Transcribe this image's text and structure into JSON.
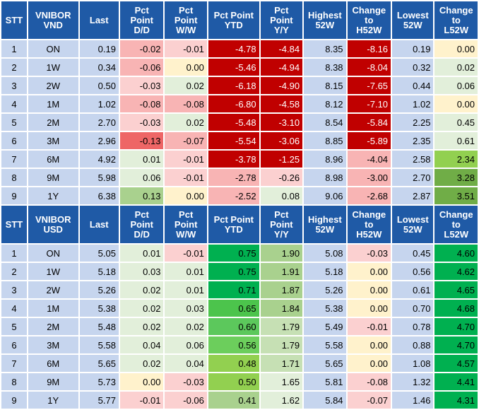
{
  "tables": [
    {
      "headers": [
        "STT",
        "VNIBOR\nVND",
        "Last",
        "Pct\nPoint\nD/D",
        "Pct\nPoint\nW/W",
        "Pct Point\nYTD",
        "Pct\nPoint\nY/Y",
        "Highest\n52W",
        "Change\nto\nH52W",
        "Lowest\n52W",
        "Change\nto\nL52W"
      ],
      "rows": [
        {
          "stt": "1",
          "term": "ON",
          "last": "0.19",
          "dd": "-0.02",
          "ww": "-0.01",
          "ytd": "-4.78",
          "yy": "-4.84",
          "h52": "8.35",
          "ch": "-8.16",
          "l52": "0.19",
          "cl": "0.00"
        },
        {
          "stt": "2",
          "term": "1W",
          "last": "0.34",
          "dd": "-0.06",
          "ww": "0.00",
          "ytd": "-5.46",
          "yy": "-4.94",
          "h52": "8.38",
          "ch": "-8.04",
          "l52": "0.32",
          "cl": "0.02"
        },
        {
          "stt": "3",
          "term": "2W",
          "last": "0.50",
          "dd": "-0.03",
          "ww": "0.02",
          "ytd": "-6.18",
          "yy": "-4.90",
          "h52": "8.15",
          "ch": "-7.65",
          "l52": "0.44",
          "cl": "0.06"
        },
        {
          "stt": "4",
          "term": "1M",
          "last": "1.02",
          "dd": "-0.08",
          "ww": "-0.08",
          "ytd": "-6.80",
          "yy": "-4.58",
          "h52": "8.12",
          "ch": "-7.10",
          "l52": "1.02",
          "cl": "0.00"
        },
        {
          "stt": "5",
          "term": "2M",
          "last": "2.70",
          "dd": "-0.03",
          "ww": "0.02",
          "ytd": "-5.48",
          "yy": "-3.10",
          "h52": "8.54",
          "ch": "-5.84",
          "l52": "2.25",
          "cl": "0.45"
        },
        {
          "stt": "6",
          "term": "3M",
          "last": "2.96",
          "dd": "-0.13",
          "ww": "-0.07",
          "ytd": "-5.54",
          "yy": "-3.06",
          "h52": "8.85",
          "ch": "-5.89",
          "l52": "2.35",
          "cl": "0.61"
        },
        {
          "stt": "7",
          "term": "6M",
          "last": "4.92",
          "dd": "0.01",
          "ww": "-0.01",
          "ytd": "-3.78",
          "yy": "-1.25",
          "h52": "8.96",
          "ch": "-4.04",
          "l52": "2.58",
          "cl": "2.34"
        },
        {
          "stt": "8",
          "term": "9M",
          "last": "5.98",
          "dd": "0.06",
          "ww": "-0.01",
          "ytd": "-2.78",
          "yy": "-0.26",
          "h52": "8.98",
          "ch": "-3.00",
          "l52": "2.70",
          "cl": "3.28"
        },
        {
          "stt": "9",
          "term": "1Y",
          "last": "6.38",
          "dd": "0.13",
          "ww": "0.00",
          "ytd": "-2.52",
          "yy": "0.08",
          "h52": "9.06",
          "ch": "-2.68",
          "l52": "2.87",
          "cl": "3.51"
        }
      ],
      "colors": [
        {
          "dd": "#f8b4b4",
          "ww": "#fbd0d0",
          "ytd": "#c00000",
          "yy": "#c00000",
          "ch": "#c00000",
          "cl": "#fff2cc"
        },
        {
          "dd": "#f8b4b4",
          "ww": "#fff2cc",
          "ytd": "#c00000",
          "yy": "#c00000",
          "ch": "#c00000",
          "cl": "#e2efda"
        },
        {
          "dd": "#fbd0d0",
          "ww": "#e2efda",
          "ytd": "#c00000",
          "yy": "#c00000",
          "ch": "#c00000",
          "cl": "#e2efda"
        },
        {
          "dd": "#f8b4b4",
          "ww": "#f8b4b4",
          "ytd": "#c00000",
          "yy": "#c00000",
          "ch": "#c00000",
          "cl": "#fff2cc"
        },
        {
          "dd": "#fbd0d0",
          "ww": "#e2efda",
          "ytd": "#c00000",
          "yy": "#c00000",
          "ch": "#c00000",
          "cl": "#e2efda"
        },
        {
          "dd": "#ee6666",
          "ww": "#f8b4b4",
          "ytd": "#c00000",
          "yy": "#c00000",
          "ch": "#c00000",
          "cl": "#e2efda"
        },
        {
          "dd": "#e2efda",
          "ww": "#fbd0d0",
          "ytd": "#c00000",
          "yy": "#c00000",
          "ch": "#f8b4b4",
          "cl": "#92d050"
        },
        {
          "dd": "#e2efda",
          "ww": "#fbd0d0",
          "ytd": "#f8b4b4",
          "yy": "#fbd0d0",
          "ch": "#f8b4b4",
          "cl": "#70ad47"
        },
        {
          "dd": "#a9d18e",
          "ww": "#fff2cc",
          "ytd": "#f8b4b4",
          "yy": "#e2efda",
          "ch": "#f8b4b4",
          "cl": "#70ad47"
        }
      ],
      "text_white": [
        "ytd",
        "yy",
        "ch"
      ]
    },
    {
      "headers": [
        "STT",
        "VNIBOR\nUSD",
        "Last",
        "Pct\nPoint\nD/D",
        "Pct\nPoint\nW/W",
        "Pct Point\nYTD",
        "Pct\nPoint\nY/Y",
        "Highest\n52W",
        "Change\nto\nH52W",
        "Lowest\n52W",
        "Change\nto\nL52W"
      ],
      "rows": [
        {
          "stt": "1",
          "term": "ON",
          "last": "5.05",
          "dd": "0.01",
          "ww": "-0.01",
          "ytd": "0.75",
          "yy": "1.90",
          "h52": "5.08",
          "ch": "-0.03",
          "l52": "0.45",
          "cl": "4.60"
        },
        {
          "stt": "2",
          "term": "1W",
          "last": "5.18",
          "dd": "0.03",
          "ww": "0.01",
          "ytd": "0.75",
          "yy": "1.91",
          "h52": "5.18",
          "ch": "0.00",
          "l52": "0.56",
          "cl": "4.62"
        },
        {
          "stt": "3",
          "term": "2W",
          "last": "5.26",
          "dd": "0.02",
          "ww": "0.01",
          "ytd": "0.71",
          "yy": "1.87",
          "h52": "5.26",
          "ch": "0.00",
          "l52": "0.61",
          "cl": "4.65"
        },
        {
          "stt": "4",
          "term": "1M",
          "last": "5.38",
          "dd": "0.02",
          "ww": "0.03",
          "ytd": "0.65",
          "yy": "1.84",
          "h52": "5.38",
          "ch": "0.00",
          "l52": "0.70",
          "cl": "4.68"
        },
        {
          "stt": "5",
          "term": "2M",
          "last": "5.48",
          "dd": "0.02",
          "ww": "0.02",
          "ytd": "0.60",
          "yy": "1.79",
          "h52": "5.49",
          "ch": "-0.01",
          "l52": "0.78",
          "cl": "4.70"
        },
        {
          "stt": "6",
          "term": "3M",
          "last": "5.58",
          "dd": "0.04",
          "ww": "0.06",
          "ytd": "0.56",
          "yy": "1.79",
          "h52": "5.58",
          "ch": "0.00",
          "l52": "0.88",
          "cl": "4.70"
        },
        {
          "stt": "7",
          "term": "6M",
          "last": "5.65",
          "dd": "0.02",
          "ww": "0.04",
          "ytd": "0.48",
          "yy": "1.71",
          "h52": "5.65",
          "ch": "0.00",
          "l52": "1.08",
          "cl": "4.57"
        },
        {
          "stt": "8",
          "term": "9M",
          "last": "5.73",
          "dd": "0.00",
          "ww": "-0.03",
          "ytd": "0.50",
          "yy": "1.65",
          "h52": "5.81",
          "ch": "-0.08",
          "l52": "1.32",
          "cl": "4.41"
        },
        {
          "stt": "9",
          "term": "1Y",
          "last": "5.77",
          "dd": "-0.01",
          "ww": "-0.06",
          "ytd": "0.41",
          "yy": "1.62",
          "h52": "5.84",
          "ch": "-0.07",
          "l52": "1.46",
          "cl": "4.31"
        }
      ],
      "colors": [
        {
          "dd": "#e2efda",
          "ww": "#fbd0d0",
          "ytd": "#00b050",
          "yy": "#a9d18e",
          "ch": "#fbd0d0",
          "cl": "#00b050"
        },
        {
          "dd": "#e2efda",
          "ww": "#e2efda",
          "ytd": "#00b050",
          "yy": "#a9d18e",
          "ch": "#fff2cc",
          "cl": "#00b050"
        },
        {
          "dd": "#e2efda",
          "ww": "#e2efda",
          "ytd": "#00b050",
          "yy": "#a9d18e",
          "ch": "#fff2cc",
          "cl": "#00b050"
        },
        {
          "dd": "#e2efda",
          "ww": "#e2efda",
          "ytd": "#4cc44c",
          "yy": "#a9d18e",
          "ch": "#fff2cc",
          "cl": "#00b050"
        },
        {
          "dd": "#e2efda",
          "ww": "#e2efda",
          "ytd": "#5cc85c",
          "yy": "#c6e0b4",
          "ch": "#fbd0d0",
          "cl": "#00b050"
        },
        {
          "dd": "#e2efda",
          "ww": "#e2efda",
          "ytd": "#6cce5c",
          "yy": "#c6e0b4",
          "ch": "#fff2cc",
          "cl": "#00b050"
        },
        {
          "dd": "#e2efda",
          "ww": "#e2efda",
          "ytd": "#92d050",
          "yy": "#c6e0b4",
          "ch": "#fff2cc",
          "cl": "#00b050"
        },
        {
          "dd": "#fff2cc",
          "ww": "#fbd0d0",
          "ytd": "#92d050",
          "yy": "#e2efda",
          "ch": "#fbd0d0",
          "cl": "#00b050"
        },
        {
          "dd": "#fbd0d0",
          "ww": "#fbd0d0",
          "ytd": "#a9d18e",
          "yy": "#e2efda",
          "ch": "#fbd0d0",
          "cl": "#00b050"
        }
      ],
      "text_white": []
    }
  ]
}
